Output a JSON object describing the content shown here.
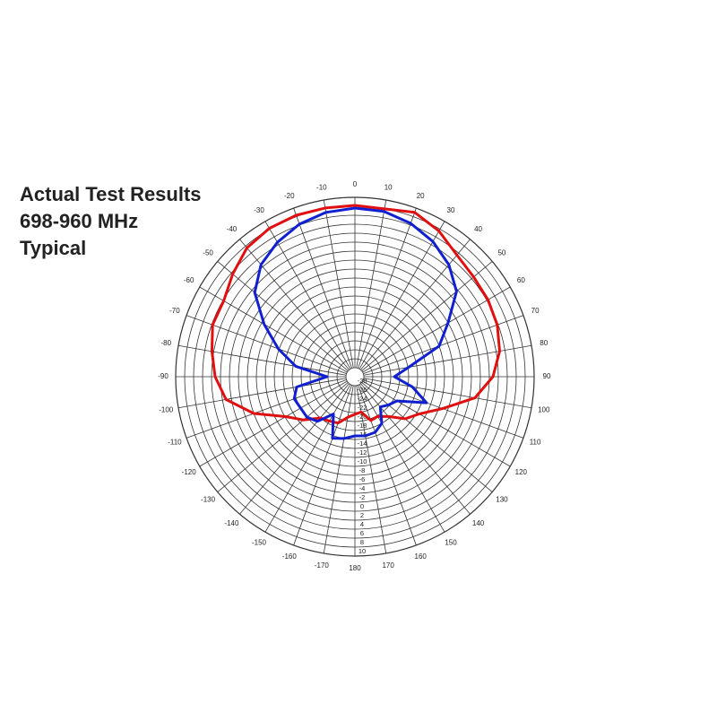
{
  "chart_data": {
    "type": "polar",
    "title": [
      "Actual Test Results",
      "698-960 MHz",
      "Typical"
    ],
    "x": [
      -180,
      -170,
      -160,
      -150,
      -140,
      -130,
      -120,
      -110,
      -100,
      -90,
      -80,
      -70,
      -60,
      -50,
      -40,
      -30,
      -20,
      -10,
      0,
      10,
      20,
      30,
      40,
      50,
      60,
      70,
      80,
      90,
      100,
      110,
      120,
      130,
      140,
      150,
      160,
      170
    ],
    "series": [
      {
        "color": "#e01010",
        "values": [
          -21.6,
          -20.8,
          -19,
          -18.6,
          -18,
          -15,
          -12.2,
          -6,
          -0.8,
          1.2,
          2.4,
          3.8,
          3.8,
          5.6,
          7.5,
          8.2,
          8.3,
          8.2,
          8.2,
          8,
          9,
          7.5,
          5.4,
          4.6,
          4.3,
          3.8,
          2.8,
          0.8,
          -2.8,
          -9.2,
          -13.4,
          -15.4,
          -18.4,
          -19.8,
          -19.6,
          -22
        ]
      },
      {
        "color": "#1020d0",
        "values": [
          -16.8,
          -16,
          -15.4,
          -20.4,
          -17,
          -16,
          -16,
          -15.6,
          -16.8,
          -23.8,
          -16.6,
          -11.8,
          -6.6,
          -0.8,
          2.6,
          4.6,
          6.2,
          7.2,
          7.6,
          7.4,
          6.4,
          4.8,
          2.6,
          -0.4,
          -6,
          -10,
          -17.8,
          -21.2,
          -17,
          -13,
          -19.2,
          -20.2,
          -21.2,
          -18,
          -16.8,
          -16.6
        ]
      }
    ],
    "xticks": [
      -170,
      -160,
      -150,
      -140,
      -130,
      -120,
      -110,
      -100,
      -90,
      -80,
      -70,
      -60,
      -50,
      -40,
      -30,
      -20,
      -10,
      0,
      10,
      20,
      30,
      40,
      50,
      60,
      70,
      80,
      90,
      100,
      110,
      120,
      130,
      140,
      150,
      160,
      170,
      180
    ],
    "ylim": [
      -30,
      10
    ],
    "yticks": [
      -28,
      -26,
      -24,
      -22,
      -20,
      -18,
      -16,
      -14,
      -12,
      -10,
      -8,
      -6,
      -4,
      -2,
      0,
      2,
      4,
      6,
      8,
      10
    ]
  }
}
